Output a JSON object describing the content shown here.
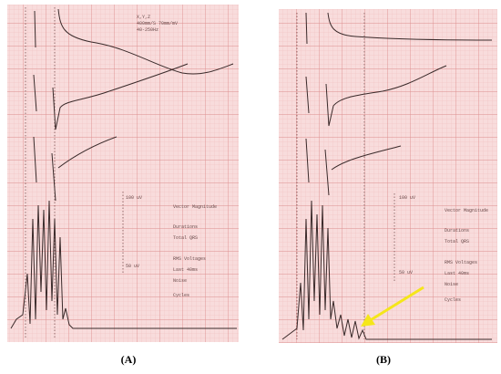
{
  "panels": [
    {
      "label": "(A)",
      "texts": [
        "X,Y,Z",
        "400mm/S 70mm/mV",
        "40-250Hz",
        "100 uV",
        "50 uV",
        "Vector Magnitude",
        "Durations",
        "Total QRS",
        "RMS Voltages",
        "Last 40ms",
        "Noise",
        "Cycles"
      ]
    },
    {
      "label": "(B)",
      "texts": [
        "100 uV",
        "50 uV",
        "Vector Magnitude",
        "Durations",
        "Total QRS",
        "RMS Voltages",
        "Last 40ms",
        "Noise",
        "Cycles"
      ]
    }
  ]
}
